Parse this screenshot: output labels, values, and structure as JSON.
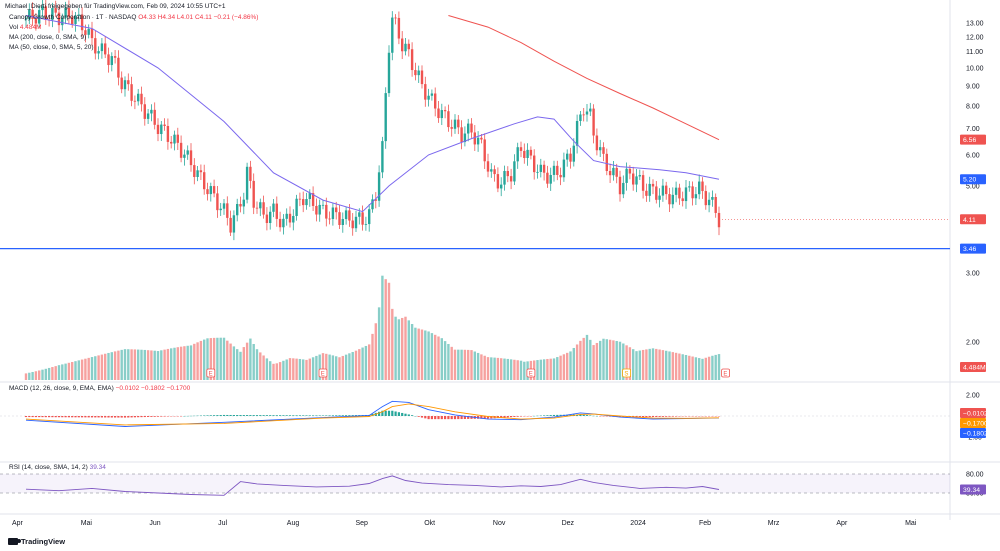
{
  "header": {
    "publisher": "Michael_Dierti freigegeben für TradingView.com, Feb 09, 2024 10:55 UTC+1",
    "symbol": "Canopy Growth Corporation · 1T · NASDAQ",
    "ohlc": "O4.33 H4.34 L4.01 C4.11 −0.21 (−4.86%)",
    "vol_label": "Vol",
    "vol_value": "4.484M",
    "ma200": "MA (200, close, 0, SMA, 9)",
    "ma50": "MA (50, close, 0, SMA, 5, 20)",
    "macd_label": "MACD (12, 26, close, 9, EMA, EMA)",
    "macd_values": "−0.0102  −0.1802  −0.1700",
    "rsi_label": "RSI (14, close, SMA, 14, 2)",
    "rsi_value": "39.34"
  },
  "footer": {
    "brand": "TradingView"
  },
  "colors": {
    "up": "#26a69a",
    "down": "#ef5350",
    "ma50": "#7b68ee",
    "ma200": "#ef5350",
    "hline": "#2962ff",
    "rsi": "#7e57c2",
    "macd": "#2962ff",
    "signal": "#ff9800"
  },
  "chart_data": {
    "type": "candlestick",
    "price_axis": {
      "ticks": [
        "13.00",
        "12.00",
        "11.00",
        "10.00",
        "9.00",
        "8.00",
        "7.00",
        "6.00",
        "5.00",
        "3.00",
        "2.00"
      ],
      "tick_values": [
        13,
        12,
        11,
        10,
        9,
        8,
        7,
        6,
        5,
        3,
        2
      ],
      "scale": "log"
    },
    "time_axis": [
      "Apr",
      "Mai",
      "Jun",
      "Jul",
      "Aug",
      "Sep",
      "Okt",
      "Nov",
      "Dez",
      "2024",
      "Feb",
      "Mrz",
      "Apr",
      "Mai"
    ],
    "badges": {
      "ma200": {
        "text": "6.56",
        "value": 6.56
      },
      "ma50": {
        "text": "5.20",
        "value": 5.2
      },
      "last": {
        "text": "4.11",
        "value": 4.11
      },
      "hline": {
        "text": "3.46",
        "value": 3.46
      },
      "volume": {
        "text": "4.484M"
      },
      "macd_hist": {
        "text": "−0.0102"
      },
      "signal": {
        "text": "−0.1700"
      },
      "macd": {
        "text": "−0.1802"
      },
      "rsi": {
        "text": "39.34"
      }
    },
    "macd_axis": {
      "ticks": [
        "2.00",
        "-2.00"
      ],
      "tick_values": [
        2,
        -2
      ]
    },
    "rsi_axis": {
      "ticks": [
        "80.00",
        "30.00"
      ],
      "tick_values": [
        80,
        30
      ]
    },
    "price_path": [
      [
        0,
        13.3
      ],
      [
        5,
        13.8
      ],
      [
        10,
        13.5
      ],
      [
        14,
        13.6
      ],
      [
        18,
        12.6
      ],
      [
        20,
        11.6
      ],
      [
        24,
        10.8
      ],
      [
        26,
        10.6
      ],
      [
        29,
        9.2
      ],
      [
        33,
        8.4
      ],
      [
        36,
        7.8
      ],
      [
        40,
        7.1
      ],
      [
        44,
        6.6
      ],
      [
        47,
        6.2
      ],
      [
        50,
        5.7
      ],
      [
        53,
        5.2
      ],
      [
        56,
        4.8
      ],
      [
        60,
        4.3
      ],
      [
        62,
        4.0
      ],
      [
        64,
        4.3
      ],
      [
        66,
        4.8
      ],
      [
        67,
        5.4
      ],
      [
        69,
        4.6
      ],
      [
        72,
        4.2
      ],
      [
        75,
        4.3
      ],
      [
        78,
        4.0
      ],
      [
        81,
        4.3
      ],
      [
        84,
        4.7
      ],
      [
        87,
        4.5
      ],
      [
        90,
        4.3
      ],
      [
        94,
        4.2
      ],
      [
        98,
        4.1
      ],
      [
        102,
        4.1
      ],
      [
        104,
        4.2
      ],
      [
        106,
        4.8
      ],
      [
        108,
        6.2
      ],
      [
        109,
        8.6
      ],
      [
        110,
        11.5
      ],
      [
        111,
        13.3
      ],
      [
        112,
        12.8
      ],
      [
        114,
        11.5
      ],
      [
        116,
        10.8
      ],
      [
        118,
        9.8
      ],
      [
        120,
        9.0
      ],
      [
        123,
        8.2
      ],
      [
        126,
        7.6
      ],
      [
        129,
        7.2
      ],
      [
        132,
        6.8
      ],
      [
        135,
        6.9
      ],
      [
        138,
        6.3
      ],
      [
        141,
        5.3
      ],
      [
        144,
        5.1
      ],
      [
        147,
        5.4
      ],
      [
        150,
        6.3
      ],
      [
        153,
        5.8
      ],
      [
        156,
        5.4
      ],
      [
        159,
        5.3
      ],
      [
        162,
        5.5
      ],
      [
        165,
        6.0
      ],
      [
        167,
        7.0
      ],
      [
        169,
        8.0
      ],
      [
        171,
        7.5
      ],
      [
        172,
        6.8
      ],
      [
        175,
        5.8
      ],
      [
        177,
        5.5
      ],
      [
        180,
        5.0
      ],
      [
        183,
        5.4
      ],
      [
        185,
        5.2
      ],
      [
        188,
        4.9
      ],
      [
        192,
        4.8
      ],
      [
        196,
        4.7
      ],
      [
        200,
        4.8
      ],
      [
        204,
        4.9
      ],
      [
        207,
        4.6
      ],
      [
        209,
        4.33
      ],
      [
        210,
        4.11
      ]
    ],
    "ma50_path": [
      [
        0,
        13.6
      ],
      [
        20,
        12.6
      ],
      [
        40,
        10.0
      ],
      [
        60,
        7.3
      ],
      [
        75,
        5.4
      ],
      [
        90,
        4.6
      ],
      [
        102,
        4.3
      ],
      [
        110,
        5.0
      ],
      [
        122,
        6.0
      ],
      [
        135,
        6.6
      ],
      [
        148,
        7.2
      ],
      [
        155,
        7.5
      ],
      [
        160,
        7.4
      ],
      [
        166,
        6.5
      ],
      [
        172,
        5.8
      ],
      [
        180,
        5.6
      ],
      [
        192,
        5.5
      ],
      [
        200,
        5.4
      ],
      [
        205,
        5.3
      ],
      [
        210,
        5.2
      ]
    ],
    "ma200_path": [
      [
        128,
        13.6
      ],
      [
        140,
        12.7
      ],
      [
        150,
        11.6
      ],
      [
        160,
        10.4
      ],
      [
        170,
        9.4
      ],
      [
        180,
        8.6
      ],
      [
        190,
        7.9
      ],
      [
        200,
        7.2
      ],
      [
        210,
        6.56
      ]
    ],
    "volume": [
      [
        0,
        0.5
      ],
      [
        10,
        0.8
      ],
      [
        20,
        1.0
      ],
      [
        30,
        1.2
      ],
      [
        40,
        1.1
      ],
      [
        50,
        1.4
      ],
      [
        55,
        1.8
      ],
      [
        60,
        2.0
      ],
      [
        65,
        1.5
      ],
      [
        68,
        2.4
      ],
      [
        70,
        1.9
      ],
      [
        75,
        1.2
      ],
      [
        80,
        1.4
      ],
      [
        85,
        1.1
      ],
      [
        90,
        1.3
      ],
      [
        95,
        1.0
      ],
      [
        100,
        1.2
      ],
      [
        104,
        1.4
      ],
      [
        106,
        2.2
      ],
      [
        107,
        2.8
      ],
      [
        108,
        4.0
      ],
      [
        110,
        3.7
      ],
      [
        111,
        2.7
      ],
      [
        112,
        2.4
      ],
      [
        113,
        2.3
      ],
      [
        115,
        2.4
      ],
      [
        118,
        2.0
      ],
      [
        122,
        1.9
      ],
      [
        126,
        1.7
      ],
      [
        130,
        1.3
      ],
      [
        135,
        1.4
      ],
      [
        140,
        1.2
      ],
      [
        145,
        1.3
      ],
      [
        150,
        1.4
      ],
      [
        155,
        1.3
      ],
      [
        160,
        1.2
      ],
      [
        165,
        1.4
      ],
      [
        168,
        1.8
      ],
      [
        170,
        2.0
      ],
      [
        172,
        1.5
      ],
      [
        175,
        1.7
      ],
      [
        180,
        1.5
      ],
      [
        185,
        1.1
      ],
      [
        190,
        1.2
      ],
      [
        195,
        1.1
      ],
      [
        200,
        1.0
      ],
      [
        205,
        0.9
      ],
      [
        210,
        1.2
      ]
    ],
    "macd_line": [
      [
        0,
        -0.4
      ],
      [
        30,
        -1.0
      ],
      [
        60,
        -0.6
      ],
      [
        90,
        -0.15
      ],
      [
        104,
        0.05
      ],
      [
        108,
        0.9
      ],
      [
        111,
        1.4
      ],
      [
        116,
        1.3
      ],
      [
        122,
        0.6
      ],
      [
        130,
        0.1
      ],
      [
        140,
        -0.3
      ],
      [
        150,
        -0.35
      ],
      [
        160,
        -0.1
      ],
      [
        168,
        0.3
      ],
      [
        172,
        0.2
      ],
      [
        180,
        -0.1
      ],
      [
        190,
        -0.3
      ],
      [
        200,
        -0.25
      ],
      [
        210,
        -0.18
      ]
    ],
    "signal_line": [
      [
        0,
        -0.3
      ],
      [
        30,
        -0.85
      ],
      [
        60,
        -0.7
      ],
      [
        90,
        -0.2
      ],
      [
        104,
        -0.05
      ],
      [
        108,
        0.4
      ],
      [
        111,
        0.9
      ],
      [
        116,
        1.15
      ],
      [
        122,
        0.9
      ],
      [
        130,
        0.4
      ],
      [
        140,
        -0.05
      ],
      [
        150,
        -0.3
      ],
      [
        160,
        -0.2
      ],
      [
        168,
        0.15
      ],
      [
        172,
        0.18
      ],
      [
        180,
        0.0
      ],
      [
        190,
        -0.2
      ],
      [
        200,
        -0.22
      ],
      [
        210,
        -0.17
      ]
    ],
    "rsi_line": [
      [
        0,
        40
      ],
      [
        10,
        36
      ],
      [
        20,
        42
      ],
      [
        30,
        34
      ],
      [
        40,
        30
      ],
      [
        50,
        26
      ],
      [
        60,
        24
      ],
      [
        65,
        60
      ],
      [
        70,
        54
      ],
      [
        78,
        50
      ],
      [
        88,
        46
      ],
      [
        98,
        48
      ],
      [
        104,
        55
      ],
      [
        108,
        68
      ],
      [
        111,
        75
      ],
      [
        115,
        63
      ],
      [
        120,
        56
      ],
      [
        128,
        52
      ],
      [
        136,
        50
      ],
      [
        144,
        46
      ],
      [
        150,
        49
      ],
      [
        156,
        47
      ],
      [
        162,
        52
      ],
      [
        168,
        66
      ],
      [
        172,
        58
      ],
      [
        178,
        50
      ],
      [
        186,
        42
      ],
      [
        194,
        45
      ],
      [
        200,
        43
      ],
      [
        205,
        47
      ],
      [
        210,
        39.34
      ]
    ]
  }
}
